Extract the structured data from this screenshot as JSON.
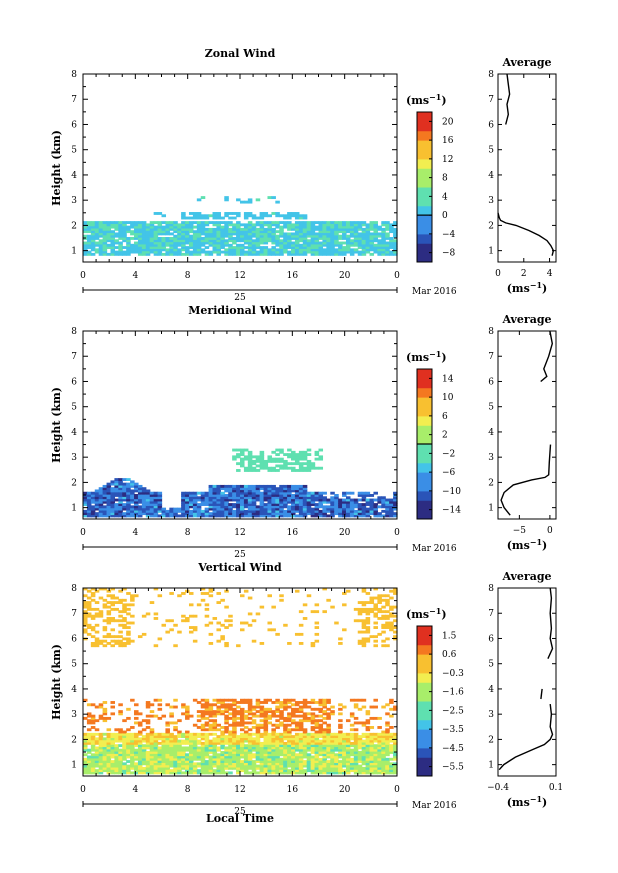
{
  "chart_data": [
    {
      "type": "heatmap",
      "title": "Zonal Wind",
      "ylabel": "Height (km)",
      "xticks": [
        "0",
        "4",
        "8",
        "12",
        "16",
        "20",
        "0"
      ],
      "yticks": [
        "1",
        "2",
        "3",
        "4",
        "5",
        "6",
        "7",
        "8"
      ],
      "date_day": "25",
      "date_month_year": "Mar 2016",
      "colorbar_unit": "(ms",
      "colorbar_unit_exp": "−1",
      "colorbar_unit_close": ")",
      "colorbar_ticks": [
        "20",
        "16",
        "12",
        "8",
        "4",
        "0",
        "−4",
        "−8"
      ],
      "colorbar_range": [
        -10,
        22
      ],
      "colorbar_marker": 0,
      "colors": [
        "#2c2c82",
        "#2a54b8",
        "#3a8ee6",
        "#43c4e8",
        "#5fe0b0",
        "#a8ee6a",
        "#f2ee50",
        "#f8c030",
        "#f47820",
        "#e03020"
      ],
      "field_description": "mostly weak positive winds 0-4 ms-1 below 2.2 km, sparse echoes above",
      "avg": {
        "title": "Average",
        "xticks": [
          "0",
          "2",
          "4"
        ],
        "xrange": [
          0,
          4.5
        ],
        "xlabel": "(ms",
        "xlabel_exp": "−1",
        "xlabel_close": ")",
        "profile": [
          [
            0.8,
            4.2
          ],
          [
            1.0,
            4.3
          ],
          [
            1.2,
            4.1
          ],
          [
            1.4,
            3.8
          ],
          [
            1.6,
            3.2
          ],
          [
            1.8,
            2.4
          ],
          [
            2.0,
            1.4
          ],
          [
            2.1,
            0.6
          ],
          [
            2.2,
            0.2
          ],
          [
            2.3,
            0.1
          ],
          [
            2.5,
            0.0
          ]
        ],
        "profile_upper": [
          [
            6.0,
            0.6
          ],
          [
            6.4,
            0.8
          ],
          [
            6.8,
            0.7
          ],
          [
            7.2,
            0.9
          ],
          [
            7.6,
            0.8
          ],
          [
            8.0,
            0.7
          ]
        ]
      }
    },
    {
      "type": "heatmap",
      "title": "Meridional Wind",
      "ylabel": "Height (km)",
      "xticks": [
        "0",
        "4",
        "8",
        "12",
        "16",
        "20",
        "0"
      ],
      "yticks": [
        "1",
        "2",
        "3",
        "4",
        "5",
        "6",
        "7",
        "8"
      ],
      "date_day": "25",
      "date_month_year": "Mar 2016",
      "colorbar_unit": "(ms",
      "colorbar_unit_exp": "−1",
      "colorbar_unit_close": ")",
      "colorbar_ticks": [
        "14",
        "10",
        "6",
        "2",
        "−2",
        "−6",
        "−10",
        "−14"
      ],
      "colorbar_range": [
        -16,
        16
      ],
      "colorbar_marker": 0,
      "colors": [
        "#2c2c82",
        "#2a54b8",
        "#3a8ee6",
        "#43c4e8",
        "#5fe0b0",
        "#a8ee6a",
        "#f2ee50",
        "#f8c030",
        "#f47820",
        "#e03020"
      ],
      "field_description": "strong negative (blue) below 2.2 km, light green patch around 2.5-3.3 km",
      "avg": {
        "title": "Average",
        "xticks": [
          "−5",
          "0"
        ],
        "xrange": [
          -8.5,
          1
        ],
        "xlabel": "(ms",
        "xlabel_exp": "−1",
        "xlabel_close": ")",
        "profile": [
          [
            0.7,
            -6.5
          ],
          [
            1.0,
            -7.5
          ],
          [
            1.3,
            -8.0
          ],
          [
            1.6,
            -7.5
          ],
          [
            1.9,
            -6.0
          ],
          [
            2.1,
            -3.0
          ],
          [
            2.2,
            -0.8
          ],
          [
            2.3,
            -0.2
          ],
          [
            2.8,
            -0.1
          ],
          [
            3.5,
            0.1
          ]
        ],
        "profile_upper": [
          [
            6.0,
            -1.5
          ],
          [
            6.2,
            -0.5
          ],
          [
            6.5,
            -1.0
          ],
          [
            7.0,
            -0.2
          ],
          [
            7.5,
            0.4
          ],
          [
            8.0,
            0.0
          ]
        ]
      }
    },
    {
      "type": "heatmap",
      "title": "Vertical Wind",
      "ylabel": "Height (km)",
      "xlabel": "Local Time",
      "xticks": [
        "0",
        "4",
        "8",
        "12",
        "16",
        "20",
        "0"
      ],
      "yticks": [
        "1",
        "2",
        "3",
        "4",
        "5",
        "6",
        "7",
        "8"
      ],
      "date_day": "25",
      "date_month_year": "Mar 2016",
      "colorbar_unit": "(ms",
      "colorbar_unit_exp": "−1",
      "colorbar_unit_close": ")",
      "colorbar_ticks": [
        "1.5",
        "0.6",
        "−0.3",
        "−1.6",
        "−2.5",
        "−3.5",
        "−4.5",
        "−5.5"
      ],
      "colorbar_range": [
        -6,
        2
      ],
      "colors": [
        "#2c2c82",
        "#2a54b8",
        "#3a8ee6",
        "#43c4e8",
        "#5fe0b0",
        "#a8ee6a",
        "#f2ee50",
        "#f8c030",
        "#f47820",
        "#e03020"
      ],
      "field_description": "weak positive/near-zero vertical velocity, yellow-orange dominant",
      "avg": {
        "title": "Average",
        "xticks": [
          "−0.4",
          "0.1"
        ],
        "xrange": [
          -0.4,
          0.1
        ],
        "xlabel": "(ms",
        "xlabel_exp": "−1",
        "xlabel_close": ")",
        "profile": [
          [
            0.8,
            -0.39
          ],
          [
            1.0,
            -0.35
          ],
          [
            1.3,
            -0.25
          ],
          [
            1.6,
            -0.1
          ],
          [
            1.8,
            0.0
          ],
          [
            2.0,
            0.05
          ],
          [
            2.2,
            0.07
          ],
          [
            2.5,
            0.05
          ],
          [
            3.0,
            0.06
          ],
          [
            3.4,
            0.05
          ]
        ],
        "profile_upper": [
          [
            3.6,
            -0.03
          ],
          [
            4.0,
            -0.02
          ]
        ],
        "profile_upper2": [
          [
            5.2,
            0.03
          ],
          [
            5.6,
            0.07
          ],
          [
            6.0,
            0.05
          ],
          [
            6.4,
            0.06
          ],
          [
            7.0,
            0.05
          ],
          [
            7.6,
            0.06
          ],
          [
            8.0,
            0.05
          ]
        ]
      }
    }
  ]
}
